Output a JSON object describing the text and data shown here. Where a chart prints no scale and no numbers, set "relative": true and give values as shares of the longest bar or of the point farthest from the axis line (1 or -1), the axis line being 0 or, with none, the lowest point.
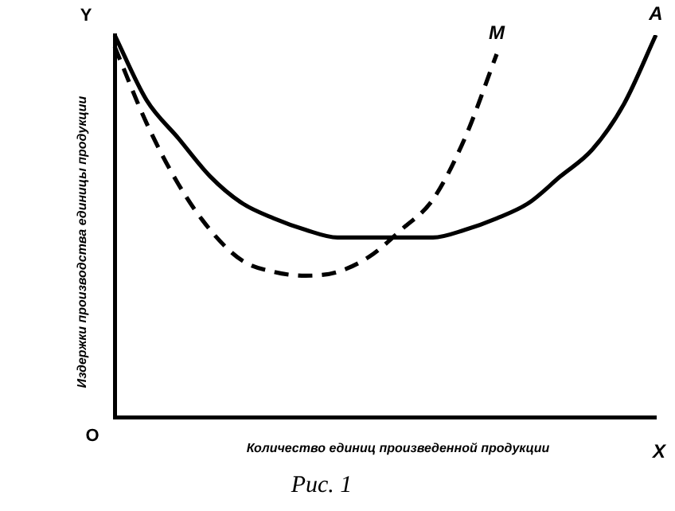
{
  "chart_data": {
    "type": "line",
    "relative": true,
    "xlabel": "Количество единиц произведенной продукции",
    "ylabel": "Издержки производства единицы продукции",
    "categories": [
      null,
      null,
      null,
      null,
      null,
      null,
      null,
      null,
      null,
      null,
      null,
      null,
      null,
      null,
      null,
      null,
      null,
      null
    ],
    "series": [
      {
        "name": "A",
        "color": "#000000",
        "line_style": "solid",
        "values": [
          1,
          0.83,
          0.73,
          0.63,
          0.56,
          0.52,
          0.49,
          0.47,
          0.47,
          0.47,
          0.47,
          0.49,
          0.52,
          0.56,
          0.63,
          0.7,
          0.82,
          1
        ]
      },
      {
        "name": "M",
        "color": "#000000",
        "line_style": "dashed",
        "values": [
          0.97,
          0.77,
          0.61,
          0.49,
          0.41,
          0.38,
          0.37,
          0.38,
          0.42,
          0.49,
          0.57,
          0.73,
          0.95,
          null,
          null,
          null,
          null,
          null
        ]
      }
    ],
    "annotations": [
      "Y",
      "O",
      "X",
      "Рис. 1"
    ],
    "legend": false,
    "grid": false,
    "marker": "none"
  }
}
